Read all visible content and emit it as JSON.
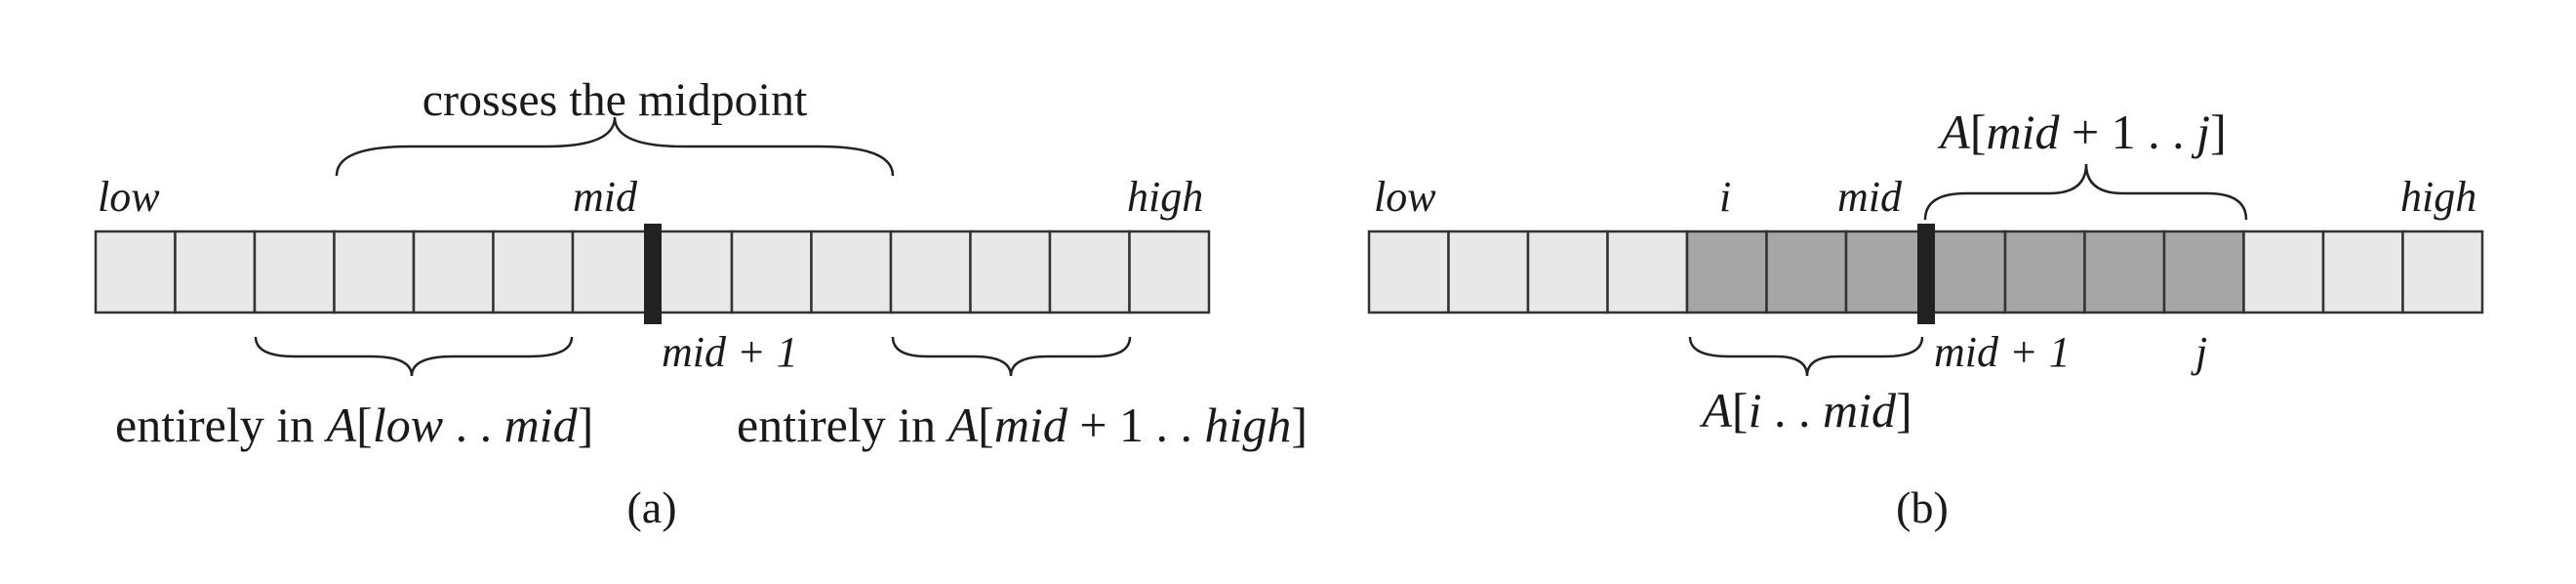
{
  "diagram_a": {
    "caption": "(a)",
    "top_brace_label": "crosses the midpoint",
    "index_labels": {
      "low": "low",
      "mid": "mid",
      "high": "high",
      "mid_plus_1": "mid + 1"
    },
    "bottom_left_label": "entirely in A[low . . mid]",
    "bottom_right_label": "entirely in A[mid + 1 . . high]",
    "cell_count": 14,
    "split_after_cell": 7
  },
  "diagram_b": {
    "caption": "(b)",
    "index_labels": {
      "low": "low",
      "i": "i",
      "mid": "mid",
      "high": "high",
      "mid_plus_1": "mid + 1",
      "j": "j"
    },
    "top_brace_label": "A[mid + 1 . . j]",
    "bottom_brace_label": "A[i . . mid]",
    "cell_count": 14,
    "split_after_cell": 7,
    "shaded_from_cell": 5,
    "shaded_to_cell": 11
  },
  "colors": {
    "cell_fill": "#e8e8e8",
    "shaded_fill": "#a6a6a6",
    "divider": "#222222",
    "stroke": "#333333"
  }
}
